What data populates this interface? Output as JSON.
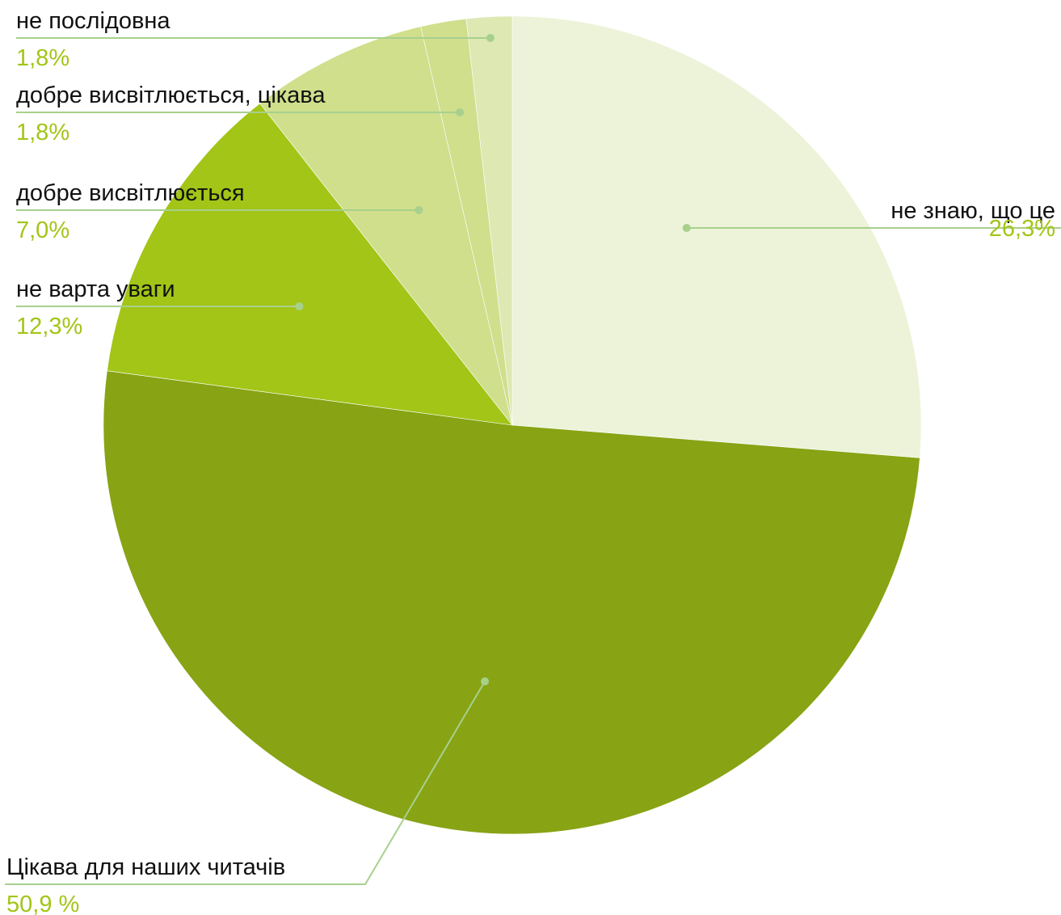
{
  "chart_data": {
    "type": "pie",
    "slices": [
      {
        "label": "не знаю, що це",
        "value_label": "26,3%",
        "value": 26.3,
        "color": "#ecf3d9"
      },
      {
        "label": "Цікава для наших читачів",
        "value_label": "50,9 %",
        "value": 50.9,
        "color": "#88a314"
      },
      {
        "label": "не варта уваги",
        "value_label": "12,3%",
        "value": 12.3,
        "color": "#a2c517"
      },
      {
        "label": "добре висвітлюється",
        "value_label": "7,0%",
        "value": 7.0,
        "color": "#cfdf8c"
      },
      {
        "label": "добре висвітлюється, цікава",
        "value_label": "1,8%",
        "value": 1.8,
        "color": "#cfdf8c"
      },
      {
        "label": "не послідовна",
        "value_label": "1,8%",
        "value": 1.8,
        "color": "#dde8b3"
      }
    ],
    "start_angle_deg": 0,
    "direction": "clockwise",
    "percent_color": "#a2c517",
    "leader_color": "#a8d08d"
  }
}
